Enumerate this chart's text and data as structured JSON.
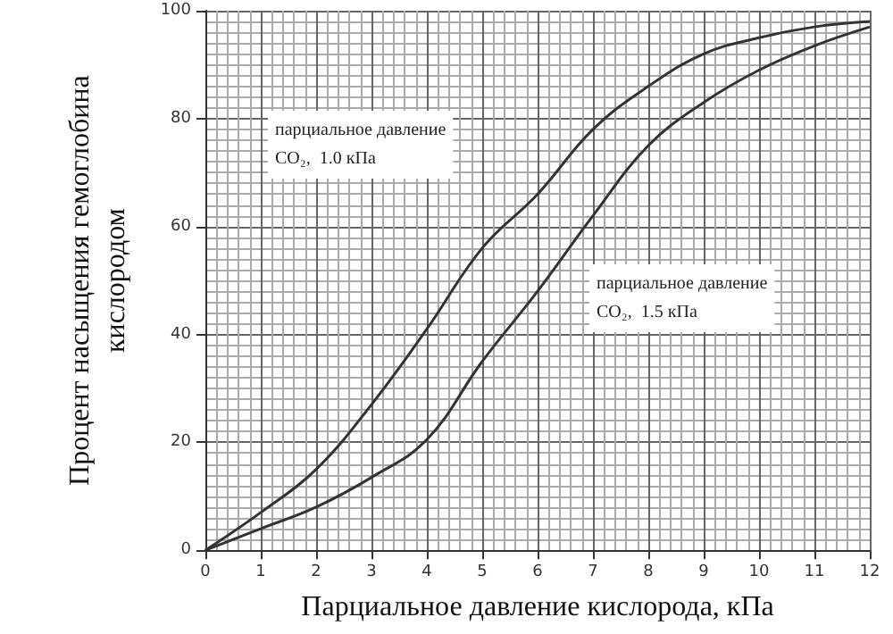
{
  "chart_data": {
    "type": "line",
    "xlabel": "Парциальное давление кислорода, кПа",
    "ylabel": "Процент насыщения гемоглобина кислородом",
    "x": [
      0,
      1,
      2,
      3,
      4,
      5,
      6,
      7,
      8,
      9,
      10,
      11,
      12
    ],
    "series": [
      {
        "color": "#333333",
        "values": [
          0,
          7,
          15,
          27,
          41,
          56,
          66,
          78,
          86,
          92,
          95,
          97,
          98
        ]
      },
      {
        "color": "#333333",
        "values": [
          0,
          4,
          8,
          13.5,
          20.5,
          35,
          48,
          62,
          75,
          83,
          89,
          93.5,
          97
        ]
      }
    ],
    "annotations": [
      "парциальное давление\nCO₂,  1.0 кПа",
      "парциальное давление\nCO₂,  1.5 кПа"
    ],
    "xlim": [
      0,
      12
    ],
    "xticks": [
      0,
      1,
      2,
      3,
      4,
      5,
      6,
      7,
      8,
      9,
      10,
      11,
      12
    ],
    "ylim": [
      0,
      100
    ],
    "yticks": [
      0,
      20,
      40,
      60,
      80,
      100
    ],
    "grid": true,
    "marker": "none",
    "line_style": "solid"
  }
}
